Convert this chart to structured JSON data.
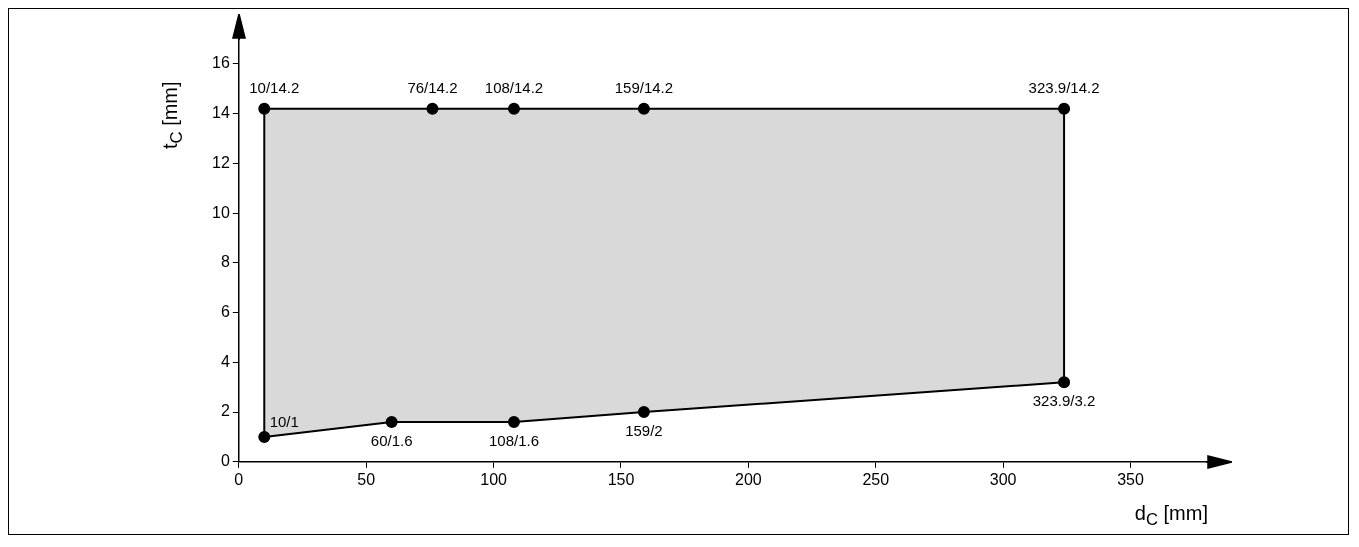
{
  "chart_data": {
    "type": "area",
    "xlabel": "d$_{C}$ [mm]",
    "ylabel": "t$_{C}$ [mm]",
    "xlim": [
      0,
      380
    ],
    "xticks": [
      0,
      50,
      100,
      150,
      200,
      250,
      300,
      350
    ],
    "ylim": [
      0,
      17
    ],
    "yticks": [
      0,
      2,
      4,
      6,
      8,
      10,
      12,
      14,
      16
    ],
    "grid": false,
    "legend": false,
    "marker": "circle",
    "series": [
      {
        "color": "#000000",
        "x": [
          10,
          10,
          60,
          108,
          159,
          323.9,
          323.9,
          159,
          108,
          76,
          10
        ],
        "values": [
          14.2,
          1,
          1.6,
          1.6,
          2,
          3.2,
          14.2,
          14.2,
          14.2,
          14.2,
          14.2
        ],
        "value_labels": [
          "10/14.2",
          "10/1",
          "60/1.6",
          "108/1.6",
          "159/2",
          "323.9/3.2",
          "323.9/14.2",
          "159/14.2",
          "108/14.2",
          "76/14.2",
          null
        ]
      }
    ]
  }
}
